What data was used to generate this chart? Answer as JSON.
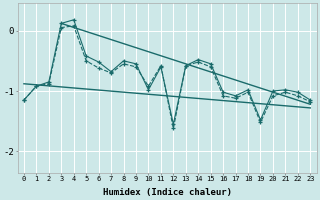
{
  "xlabel": "Humidex (Indice chaleur)",
  "bg_color": "#cde8e8",
  "grid_color": "#ffffff",
  "line_color": "#1a6b6b",
  "xlim": [
    -0.5,
    23.5
  ],
  "ylim": [
    -2.35,
    0.45
  ],
  "yticks": [
    0,
    -1,
    -2
  ],
  "xticks": [
    0,
    1,
    2,
    3,
    4,
    5,
    6,
    7,
    8,
    9,
    10,
    11,
    12,
    13,
    14,
    15,
    16,
    17,
    18,
    19,
    20,
    21,
    22,
    23
  ],
  "series1_x": [
    0,
    1,
    2,
    3,
    4,
    5,
    6,
    7,
    8,
    9,
    10,
    11,
    12,
    13,
    14,
    15,
    16,
    17,
    18,
    19,
    20,
    21,
    22,
    23
  ],
  "series1_y": [
    -1.15,
    -0.92,
    -0.88,
    0.05,
    0.08,
    -0.5,
    -0.62,
    -0.7,
    -0.55,
    -0.6,
    -0.92,
    -0.58,
    -1.62,
    -0.58,
    -0.52,
    -0.6,
    -1.08,
    -1.12,
    -1.02,
    -1.52,
    -1.08,
    -1.02,
    -1.08,
    -1.18
  ],
  "series2_x": [
    0,
    1,
    2,
    3,
    4,
    5,
    6,
    7,
    8,
    9,
    10,
    11,
    12,
    13,
    14,
    15,
    16,
    17,
    18,
    19,
    20,
    21,
    22,
    23
  ],
  "series2_y": [
    -1.15,
    -0.92,
    -0.85,
    0.12,
    0.18,
    -0.42,
    -0.52,
    -0.68,
    -0.5,
    -0.55,
    -0.98,
    -0.6,
    -1.55,
    -0.58,
    -0.48,
    -0.55,
    -1.02,
    -1.08,
    -0.98,
    -1.48,
    -1.0,
    -0.98,
    -1.02,
    -1.15
  ],
  "trend1_x": [
    0,
    23
  ],
  "trend1_y": [
    -0.88,
    -1.28
  ],
  "trend2_x": [
    3,
    23
  ],
  "trend2_y": [
    0.12,
    -1.22
  ]
}
